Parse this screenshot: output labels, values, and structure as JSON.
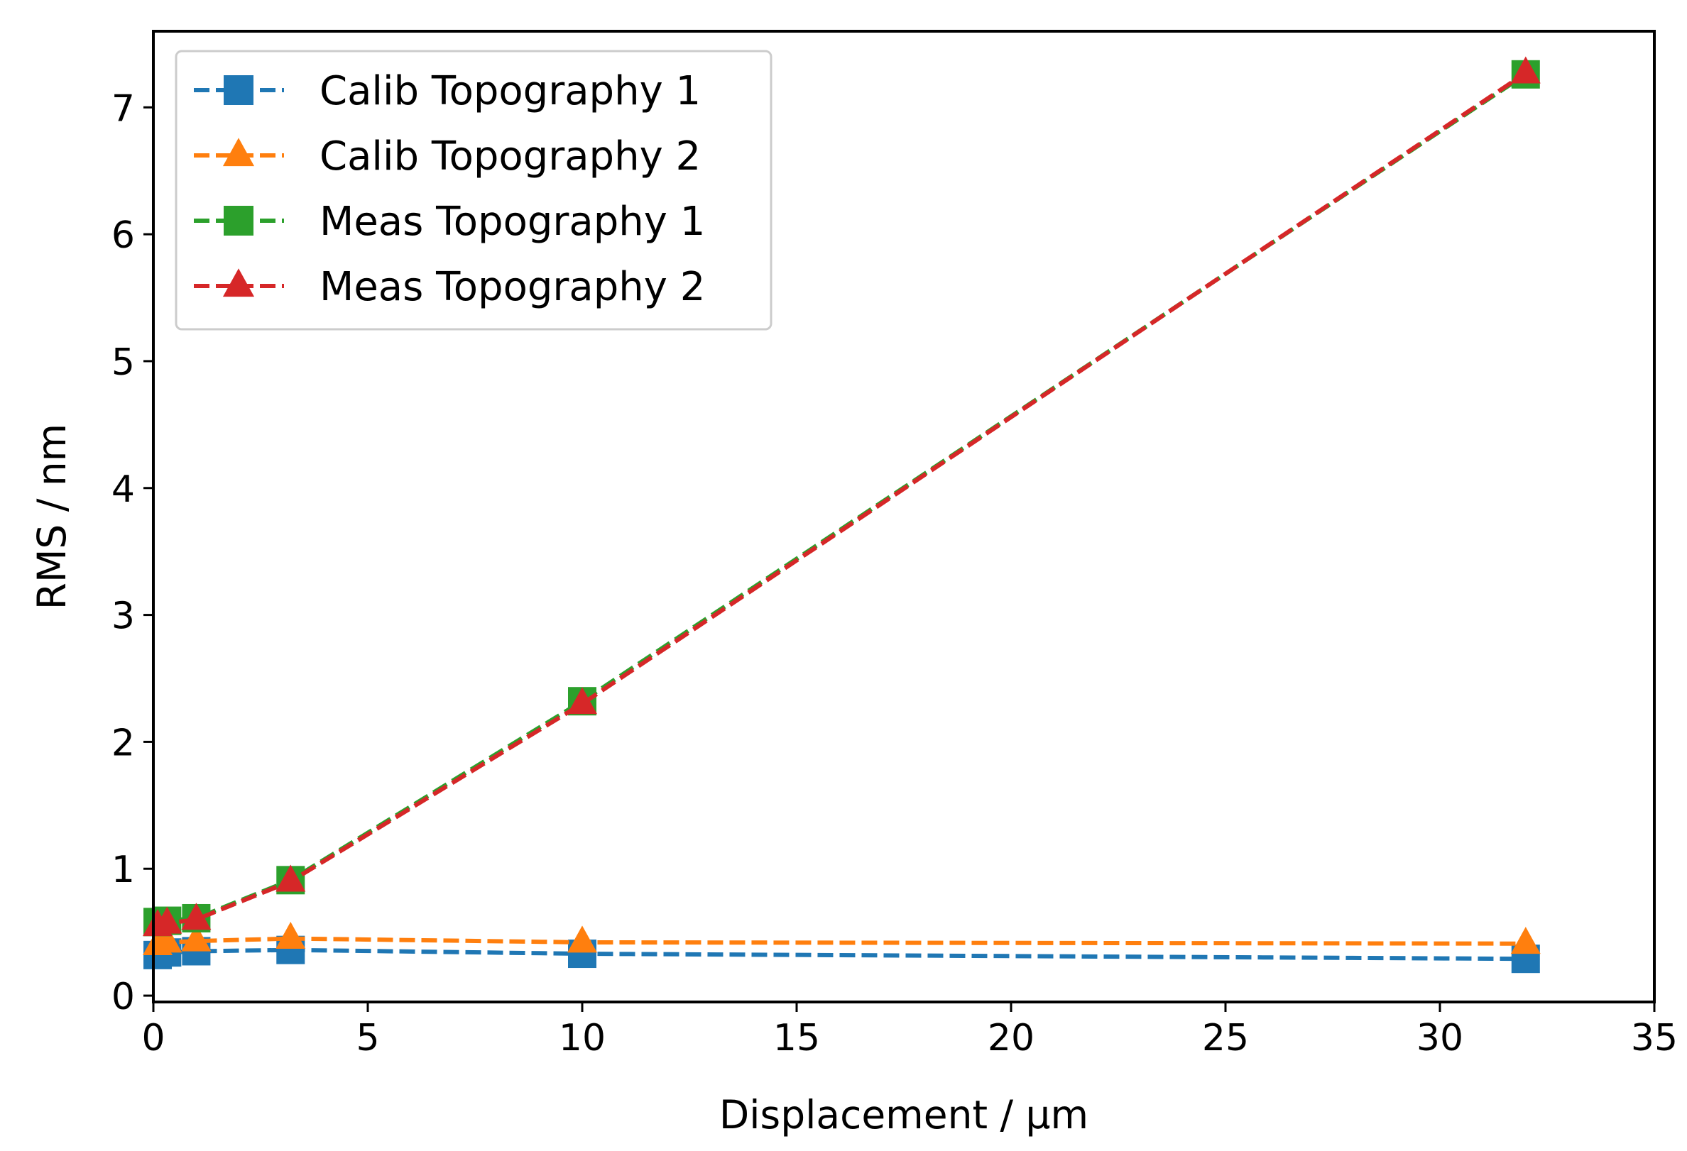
{
  "chart_data": {
    "type": "line",
    "title": "",
    "xlabel": "Displacement / µm",
    "ylabel": "RMS / nm",
    "xlim": [
      0,
      35
    ],
    "ylim": [
      -0.05,
      7.6
    ],
    "xticks": [
      0,
      5,
      10,
      15,
      20,
      25,
      30,
      35
    ],
    "yticks": [
      0,
      1,
      2,
      3,
      4,
      5,
      6,
      7
    ],
    "legend_position": "top-left",
    "grid": false,
    "x": [
      0.1,
      0.32,
      1,
      3.2,
      10,
      32
    ],
    "series": [
      {
        "name": "Calib Topography 1",
        "color": "#1f77b4",
        "marker": "square",
        "values": [
          0.32,
          0.34,
          0.35,
          0.36,
          0.33,
          0.29
        ]
      },
      {
        "name": "Calib Topography 2",
        "color": "#ff7f0e",
        "marker": "triangle",
        "values": [
          0.4,
          0.42,
          0.43,
          0.45,
          0.42,
          0.41
        ]
      },
      {
        "name": "Meas Topography 1",
        "color": "#2ca02c",
        "marker": "square",
        "values": [
          0.58,
          0.59,
          0.61,
          0.91,
          2.32,
          7.26
        ]
      },
      {
        "name": "Meas Topography 2",
        "color": "#d62728",
        "marker": "triangle",
        "values": [
          0.55,
          0.57,
          0.6,
          0.9,
          2.3,
          7.27
        ]
      }
    ]
  }
}
